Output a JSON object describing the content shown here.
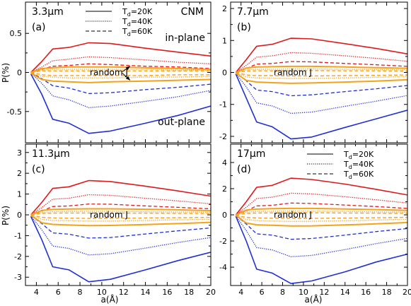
{
  "colors": {
    "in_plane": "#e0191c",
    "out_plane": "#1f2fd6",
    "random": "#f5a21b",
    "axis": "#000000"
  },
  "figure": {
    "x_label": "a(Å)",
    "y_label": "P(%)",
    "legend_entries": [
      {
        "text": "Td=20K",
        "base": "T",
        "sub": "d",
        "rest": "=20K",
        "linestyle": "solid"
      },
      {
        "text": "Td=40K",
        "base": "T",
        "sub": "d",
        "rest": "=40K",
        "linestyle": "dotted"
      },
      {
        "text": "Td=60K",
        "base": "T",
        "sub": "d",
        "rest": "=60K",
        "linestyle": "dashed"
      }
    ],
    "annotations": {
      "cnm": "CNM",
      "in_plane": "in-plane",
      "out_plane": "out-plane",
      "random_j": "random J"
    }
  },
  "chart_data": [
    {
      "type": "line",
      "panel": "(a)",
      "wavelength": "3.3μm",
      "xlim": [
        3,
        20
      ],
      "ylim": [
        -0.9,
        0.9
      ],
      "xticks": [
        4,
        6,
        8,
        10,
        12,
        14,
        16,
        18,
        20
      ],
      "yticks": [
        -0.5,
        0,
        0.5
      ],
      "x": [
        3.5,
        4.5,
        5.5,
        7,
        8.8,
        10.8,
        14,
        17,
        20
      ],
      "series": [
        {
          "group": "in-plane",
          "Td": "20K",
          "values": [
            0.0,
            0.14,
            0.3,
            0.32,
            0.38,
            0.37,
            0.31,
            0.26,
            0.21
          ]
        },
        {
          "group": "in-plane",
          "Td": "40K",
          "values": [
            0.0,
            0.07,
            0.15,
            0.17,
            0.2,
            0.19,
            0.16,
            0.13,
            0.11
          ]
        },
        {
          "group": "in-plane",
          "Td": "60K",
          "values": [
            0.0,
            0.04,
            0.08,
            0.09,
            0.11,
            0.1,
            0.08,
            0.07,
            0.05
          ]
        },
        {
          "group": "out-plane",
          "Td": "20K",
          "values": [
            -0.02,
            -0.28,
            -0.6,
            -0.65,
            -0.78,
            -0.75,
            -0.65,
            -0.55,
            -0.43
          ]
        },
        {
          "group": "out-plane",
          "Td": "40K",
          "values": [
            -0.01,
            -0.14,
            -0.3,
            -0.35,
            -0.45,
            -0.43,
            -0.37,
            -0.31,
            -0.23
          ]
        },
        {
          "group": "out-plane",
          "Td": "60K",
          "values": [
            0.0,
            -0.08,
            -0.17,
            -0.2,
            -0.27,
            -0.26,
            -0.22,
            -0.19,
            -0.15
          ]
        },
        {
          "group": "random J",
          "Td": "20K",
          "values": [
            0.0,
            0.05,
            0.06,
            0.07,
            0.07,
            0.07,
            0.06,
            0.05,
            0.04
          ]
        },
        {
          "group": "random J",
          "Td": "40K",
          "values": [
            0.0,
            0.03,
            0.04,
            0.04,
            0.04,
            0.04,
            0.04,
            0.03,
            0.03
          ]
        },
        {
          "group": "random J",
          "Td": "60K",
          "values": [
            0.0,
            0.02,
            0.02,
            0.02,
            0.02,
            0.02,
            0.02,
            0.02,
            0.02
          ]
        },
        {
          "group": "random J",
          "Td": "20K",
          "values": [
            -0.01,
            -0.09,
            -0.11,
            -0.12,
            -0.13,
            -0.12,
            -0.11,
            -0.1,
            -0.09
          ]
        },
        {
          "group": "random J",
          "Td": "40K",
          "values": [
            -0.01,
            -0.05,
            -0.06,
            -0.07,
            -0.07,
            -0.07,
            -0.06,
            -0.06,
            -0.05
          ]
        },
        {
          "group": "random J",
          "Td": "60K",
          "values": [
            0.0,
            -0.03,
            -0.04,
            -0.04,
            -0.04,
            -0.04,
            -0.04,
            -0.03,
            -0.03
          ]
        }
      ]
    },
    {
      "type": "line",
      "panel": "(b)",
      "wavelength": "7.7μm",
      "xlim": [
        3,
        20
      ],
      "ylim": [
        -2.2,
        2.2
      ],
      "xticks": [
        4,
        6,
        8,
        10,
        12,
        14,
        16,
        18,
        20
      ],
      "yticks": [
        -2,
        -1,
        0,
        1,
        2
      ],
      "x": [
        3.5,
        4.5,
        5.5,
        7,
        8.8,
        10.8,
        14,
        17,
        20
      ],
      "series": [
        {
          "group": "in-plane",
          "Td": "20K",
          "values": [
            0.0,
            0.4,
            0.82,
            0.88,
            1.07,
            1.05,
            0.9,
            0.75,
            0.58
          ]
        },
        {
          "group": "in-plane",
          "Td": "40K",
          "values": [
            0.0,
            0.22,
            0.48,
            0.52,
            0.62,
            0.6,
            0.52,
            0.44,
            0.35
          ]
        },
        {
          "group": "in-plane",
          "Td": "60K",
          "values": [
            0.0,
            0.12,
            0.26,
            0.28,
            0.34,
            0.33,
            0.28,
            0.24,
            0.19
          ]
        },
        {
          "group": "out-plane",
          "Td": "20K",
          "values": [
            -0.05,
            -0.8,
            -1.55,
            -1.7,
            -2.08,
            -2.02,
            -1.72,
            -1.45,
            -1.18
          ]
        },
        {
          "group": "out-plane",
          "Td": "40K",
          "values": [
            -0.03,
            -0.45,
            -0.95,
            -1.05,
            -1.28,
            -1.24,
            -1.06,
            -0.9,
            -0.72
          ]
        },
        {
          "group": "out-plane",
          "Td": "60K",
          "values": [
            -0.02,
            -0.26,
            -0.55,
            -0.6,
            -0.73,
            -0.7,
            -0.6,
            -0.51,
            -0.41
          ]
        },
        {
          "group": "random J",
          "Td": "20K",
          "values": [
            0.0,
            0.14,
            0.17,
            0.18,
            0.19,
            0.19,
            0.17,
            0.15,
            0.13
          ]
        },
        {
          "group": "random J",
          "Td": "40K",
          "values": [
            0.0,
            0.08,
            0.1,
            0.1,
            0.11,
            0.11,
            0.1,
            0.09,
            0.08
          ]
        },
        {
          "group": "random J",
          "Td": "60K",
          "values": [
            0.0,
            0.04,
            0.05,
            0.05,
            0.06,
            0.06,
            0.05,
            0.05,
            0.04
          ]
        },
        {
          "group": "random J",
          "Td": "20K",
          "values": [
            -0.02,
            -0.25,
            -0.3,
            -0.32,
            -0.34,
            -0.33,
            -0.3,
            -0.27,
            -0.23
          ]
        },
        {
          "group": "random J",
          "Td": "40K",
          "values": [
            -0.01,
            -0.14,
            -0.17,
            -0.18,
            -0.19,
            -0.19,
            -0.17,
            -0.15,
            -0.13
          ]
        },
        {
          "group": "random J",
          "Td": "60K",
          "values": [
            0.0,
            -0.08,
            -0.1,
            -0.1,
            -0.11,
            -0.11,
            -0.1,
            -0.09,
            -0.08
          ]
        }
      ]
    },
    {
      "type": "line",
      "panel": "(c)",
      "wavelength": "11.3μm",
      "xlim": [
        3,
        20
      ],
      "ylim": [
        -3.4,
        3.4
      ],
      "xticks": [
        4,
        6,
        8,
        10,
        12,
        14,
        16,
        18,
        20
      ],
      "yticks": [
        -3,
        -2,
        -1,
        0,
        1,
        2,
        3
      ],
      "x": [
        3.5,
        4.5,
        5.5,
        7,
        8.8,
        10.8,
        14,
        17,
        20
      ],
      "series": [
        {
          "group": "in-plane",
          "Td": "20K",
          "values": [
            0.0,
            0.6,
            1.27,
            1.35,
            1.65,
            1.6,
            1.38,
            1.15,
            0.9
          ]
        },
        {
          "group": "in-plane",
          "Td": "40K",
          "values": [
            0.0,
            0.35,
            0.75,
            0.8,
            0.97,
            0.94,
            0.8,
            0.67,
            0.53
          ]
        },
        {
          "group": "in-plane",
          "Td": "60K",
          "values": [
            0.0,
            0.18,
            0.4,
            0.43,
            0.52,
            0.51,
            0.43,
            0.36,
            0.29
          ]
        },
        {
          "group": "out-plane",
          "Td": "20K",
          "values": [
            -0.08,
            -1.2,
            -2.5,
            -2.65,
            -3.22,
            -3.1,
            -2.65,
            -2.2,
            -1.8
          ]
        },
        {
          "group": "out-plane",
          "Td": "40K",
          "values": [
            -0.05,
            -0.72,
            -1.5,
            -1.62,
            -1.93,
            -1.87,
            -1.6,
            -1.33,
            -1.09
          ]
        },
        {
          "group": "out-plane",
          "Td": "60K",
          "values": [
            -0.03,
            -0.42,
            -0.87,
            -0.93,
            -1.12,
            -1.09,
            -0.92,
            -0.77,
            -0.63
          ]
        },
        {
          "group": "random J",
          "Td": "20K",
          "values": [
            0.0,
            0.21,
            0.26,
            0.28,
            0.29,
            0.29,
            0.27,
            0.24,
            0.2
          ]
        },
        {
          "group": "random J",
          "Td": "40K",
          "values": [
            0.0,
            0.12,
            0.15,
            0.16,
            0.17,
            0.17,
            0.15,
            0.14,
            0.12
          ]
        },
        {
          "group": "random J",
          "Td": "60K",
          "values": [
            0.0,
            0.07,
            0.08,
            0.09,
            0.09,
            0.09,
            0.08,
            0.07,
            0.06
          ]
        },
        {
          "group": "random J",
          "Td": "20K",
          "values": [
            -0.03,
            -0.38,
            -0.46,
            -0.49,
            -0.52,
            -0.51,
            -0.47,
            -0.42,
            -0.36
          ]
        },
        {
          "group": "random J",
          "Td": "40K",
          "values": [
            -0.02,
            -0.22,
            -0.27,
            -0.28,
            -0.3,
            -0.3,
            -0.27,
            -0.24,
            -0.21
          ]
        },
        {
          "group": "random J",
          "Td": "60K",
          "values": [
            -0.01,
            -0.12,
            -0.15,
            -0.16,
            -0.17,
            -0.17,
            -0.15,
            -0.14,
            -0.12
          ]
        }
      ]
    },
    {
      "type": "line",
      "panel": "(d)",
      "wavelength": "17μm",
      "xlim": [
        3,
        20
      ],
      "ylim": [
        -5.4,
        5.4
      ],
      "xticks": [
        4,
        6,
        8,
        10,
        12,
        14,
        16,
        18,
        20
      ],
      "yticks": [
        -4,
        -2,
        0,
        2,
        4
      ],
      "x": [
        3.5,
        4.5,
        5.5,
        7,
        8.8,
        10.8,
        14,
        17,
        20
      ],
      "series": [
        {
          "group": "in-plane",
          "Td": "20K",
          "values": [
            0.0,
            1.0,
            2.1,
            2.25,
            2.8,
            2.7,
            2.35,
            1.95,
            1.52
          ]
        },
        {
          "group": "in-plane",
          "Td": "40K",
          "values": [
            0.0,
            0.58,
            1.25,
            1.35,
            1.65,
            1.6,
            1.38,
            1.15,
            0.9
          ]
        },
        {
          "group": "in-plane",
          "Td": "60K",
          "values": [
            0.0,
            0.3,
            0.68,
            0.73,
            0.9,
            0.87,
            0.75,
            0.63,
            0.49
          ]
        },
        {
          "group": "out-plane",
          "Td": "20K",
          "values": [
            -0.12,
            -2.0,
            -4.15,
            -4.45,
            -5.25,
            -5.05,
            -4.35,
            -3.6,
            -3.0
          ]
        },
        {
          "group": "out-plane",
          "Td": "40K",
          "values": [
            -0.08,
            -1.2,
            -2.5,
            -2.68,
            -3.2,
            -3.1,
            -2.65,
            -2.2,
            -1.8
          ]
        },
        {
          "group": "out-plane",
          "Td": "60K",
          "values": [
            -0.05,
            -0.7,
            -1.45,
            -1.55,
            -1.87,
            -1.81,
            -1.55,
            -1.28,
            -1.05
          ]
        },
        {
          "group": "random J",
          "Td": "20K",
          "values": [
            0.0,
            0.36,
            0.44,
            0.47,
            0.49,
            0.49,
            0.45,
            0.4,
            0.34
          ]
        },
        {
          "group": "random J",
          "Td": "40K",
          "values": [
            0.0,
            0.21,
            0.26,
            0.27,
            0.29,
            0.29,
            0.26,
            0.23,
            0.2
          ]
        },
        {
          "group": "random J",
          "Td": "60K",
          "values": [
            0.0,
            0.11,
            0.14,
            0.15,
            0.16,
            0.16,
            0.14,
            0.13,
            0.11
          ]
        },
        {
          "group": "random J",
          "Td": "20K",
          "values": [
            -0.05,
            -0.62,
            -0.76,
            -0.8,
            -0.85,
            -0.84,
            -0.77,
            -0.69,
            -0.59
          ]
        },
        {
          "group": "random J",
          "Td": "40K",
          "values": [
            -0.03,
            -0.36,
            -0.44,
            -0.47,
            -0.5,
            -0.49,
            -0.45,
            -0.4,
            -0.34
          ]
        },
        {
          "group": "random J",
          "Td": "60K",
          "values": [
            -0.02,
            -0.2,
            -0.24,
            -0.26,
            -0.27,
            -0.27,
            -0.25,
            -0.22,
            -0.19
          ]
        }
      ]
    }
  ]
}
